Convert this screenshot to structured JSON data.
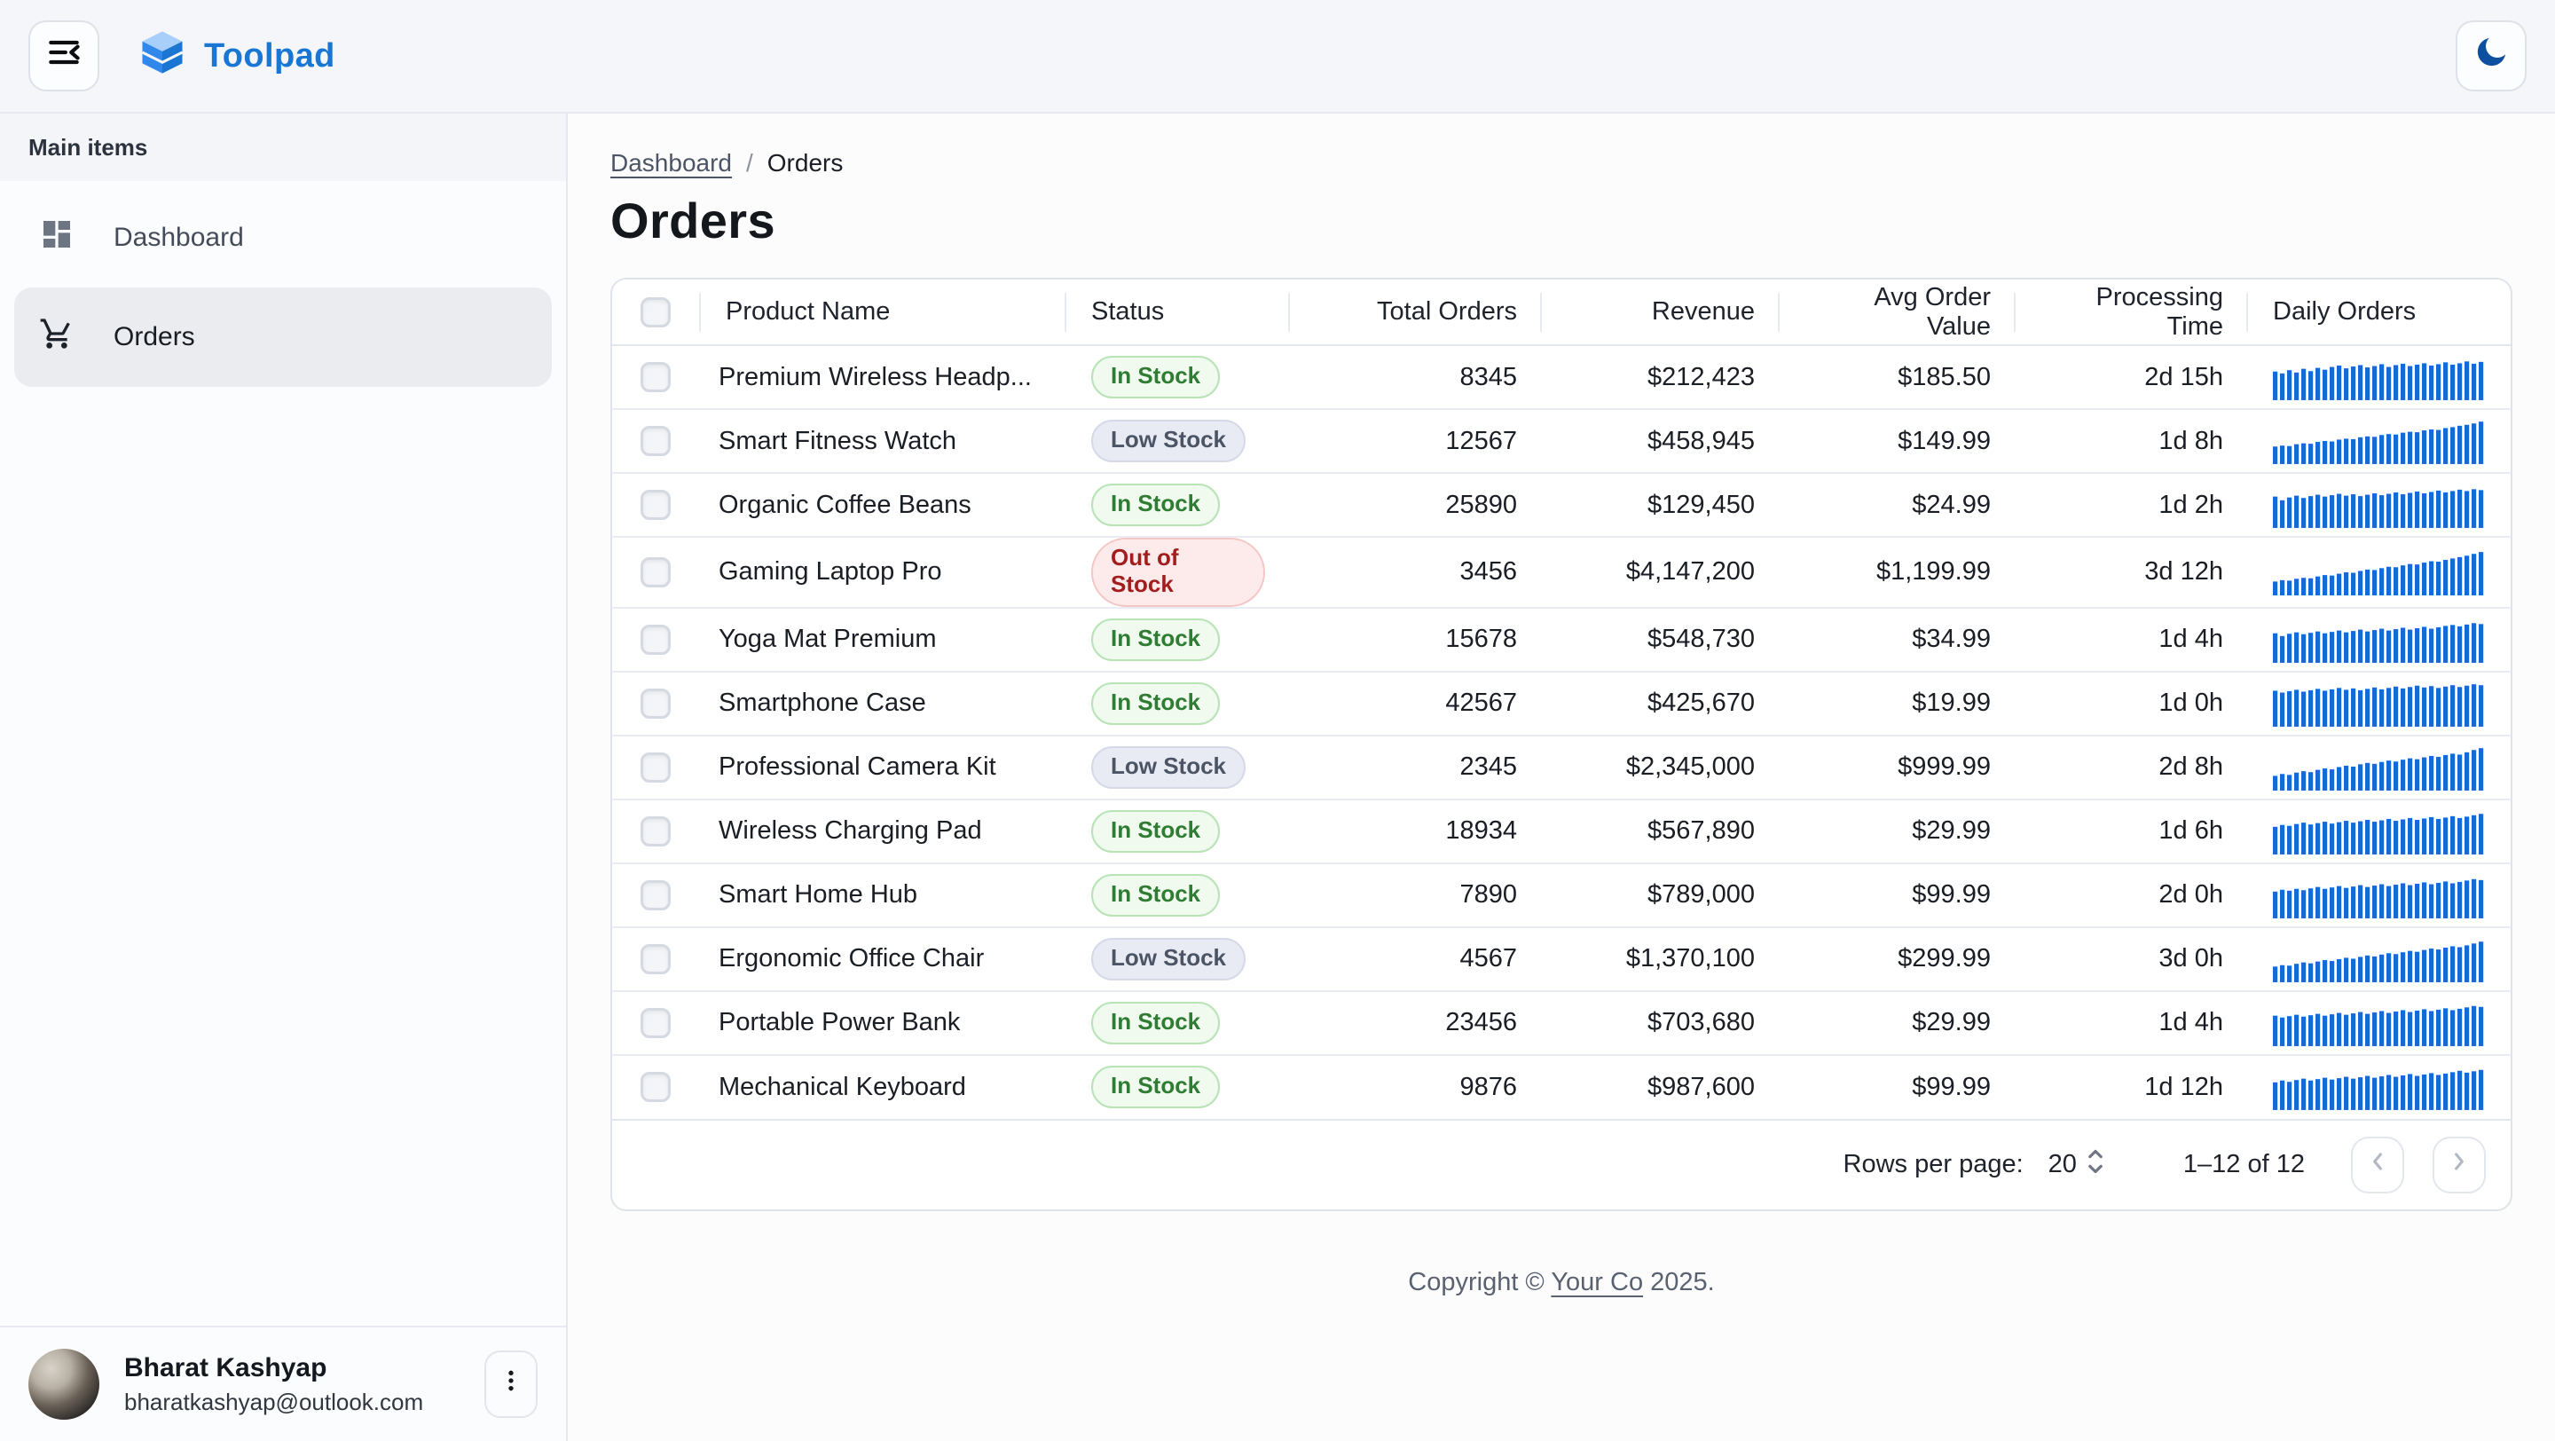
{
  "header": {
    "app_name": "Toolpad",
    "menu_icon": "collapse-sidebar-icon",
    "theme_icon": "moon-icon"
  },
  "sidebar": {
    "section_label": "Main items",
    "items": [
      {
        "label": "Dashboard",
        "icon": "dashboard-icon",
        "active": false
      },
      {
        "label": "Orders",
        "icon": "cart-icon",
        "active": true
      }
    ]
  },
  "user": {
    "name": "Bharat Kashyap",
    "email": "bharatkashyap@outlook.com"
  },
  "breadcrumb": {
    "items": [
      "Dashboard",
      "Orders"
    ],
    "separator": "/"
  },
  "page": {
    "title": "Orders"
  },
  "table": {
    "columns": [
      "",
      "Product Name",
      "Status",
      "Total Orders",
      "Revenue",
      "Avg Order Value",
      "Processing Time",
      "Daily Orders"
    ],
    "rows": [
      {
        "product": "Premium Wireless Headp...",
        "status": "In Stock",
        "status_type": "in",
        "total_orders": "8345",
        "revenue": "$212,423",
        "avg_order_value": "$185.50",
        "processing_time": "2d 15h",
        "daily_orders": [
          62,
          58,
          65,
          60,
          68,
          63,
          70,
          66,
          72,
          75,
          69,
          73,
          76,
          71,
          74,
          78,
          72,
          76,
          79,
          74,
          77,
          80,
          75,
          78,
          82,
          77,
          80,
          84,
          79,
          83
        ]
      },
      {
        "product": "Smart Fitness Watch",
        "status": "Low Stock",
        "status_type": "low",
        "total_orders": "12567",
        "revenue": "$458,945",
        "avg_order_value": "$149.99",
        "processing_time": "1d 8h",
        "daily_orders": [
          38,
          40,
          39,
          43,
          45,
          44,
          48,
          50,
          49,
          53,
          55,
          54,
          58,
          60,
          59,
          63,
          65,
          64,
          68,
          70,
          69,
          73,
          75,
          74,
          78,
          80,
          83,
          85,
          88,
          92
        ]
      },
      {
        "product": "Organic Coffee Beans",
        "status": "In Stock",
        "status_type": "in",
        "total_orders": "25890",
        "revenue": "$129,450",
        "avg_order_value": "$24.99",
        "processing_time": "1d 2h",
        "daily_orders": [
          68,
          60,
          66,
          70,
          65,
          69,
          72,
          68,
          71,
          74,
          70,
          73,
          69,
          72,
          75,
          71,
          74,
          77,
          73,
          76,
          79,
          75,
          78,
          81,
          77,
          80,
          83,
          80,
          84,
          82
        ]
      },
      {
        "product": "Gaming Laptop Pro",
        "status": "Out of Stock",
        "status_type": "out",
        "total_orders": "3456",
        "revenue": "$4,147,200",
        "avg_order_value": "$1,199.99",
        "processing_time": "3d 12h",
        "daily_orders": [
          30,
          33,
          32,
          36,
          38,
          37,
          41,
          44,
          43,
          47,
          50,
          49,
          53,
          56,
          55,
          59,
          62,
          61,
          65,
          68,
          67,
          71,
          74,
          73,
          77,
          80,
          83,
          86,
          90,
          94
        ]
      },
      {
        "product": "Yoga Mat Premium",
        "status": "In Stock",
        "status_type": "in",
        "total_orders": "15678",
        "revenue": "$548,730",
        "avg_order_value": "$34.99",
        "processing_time": "1d 4h",
        "daily_orders": [
          64,
          58,
          63,
          66,
          62,
          65,
          68,
          64,
          67,
          70,
          66,
          69,
          72,
          68,
          71,
          74,
          70,
          73,
          76,
          72,
          75,
          78,
          74,
          77,
          80,
          82,
          79,
          83,
          86,
          84
        ]
      },
      {
        "product": "Smartphone Case",
        "status": "In Stock",
        "status_type": "in",
        "total_orders": "42567",
        "revenue": "$425,670",
        "avg_order_value": "$19.99",
        "processing_time": "1d 0h",
        "daily_orders": [
          78,
          74,
          77,
          80,
          76,
          79,
          82,
          78,
          81,
          84,
          80,
          83,
          79,
          82,
          85,
          81,
          84,
          87,
          83,
          86,
          89,
          85,
          88,
          84,
          87,
          90,
          86,
          89,
          92,
          90
        ]
      },
      {
        "product": "Professional Camera Kit",
        "status": "Low Stock",
        "status_type": "low",
        "total_orders": "2345",
        "revenue": "$2,345,000",
        "avg_order_value": "$999.99",
        "processing_time": "2d 8h",
        "daily_orders": [
          32,
          36,
          34,
          39,
          42,
          40,
          45,
          48,
          46,
          51,
          54,
          52,
          57,
          60,
          58,
          62,
          65,
          63,
          67,
          70,
          68,
          72,
          75,
          73,
          77,
          80,
          78,
          83,
          88,
          92
        ]
      },
      {
        "product": "Wireless Charging Pad",
        "status": "In Stock",
        "status_type": "in",
        "total_orders": "18934",
        "revenue": "$567,890",
        "avg_order_value": "$29.99",
        "processing_time": "1d 6h",
        "daily_orders": [
          60,
          64,
          62,
          66,
          69,
          65,
          68,
          71,
          67,
          70,
          73,
          69,
          72,
          75,
          71,
          74,
          77,
          73,
          76,
          79,
          75,
          78,
          81,
          77,
          80,
          83,
          79,
          82,
          85,
          88
        ]
      },
      {
        "product": "Smart Home Hub",
        "status": "In Stock",
        "status_type": "in",
        "total_orders": "7890",
        "revenue": "$789,000",
        "avg_order_value": "$99.99",
        "processing_time": "2d 0h",
        "daily_orders": [
          58,
          62,
          60,
          64,
          61,
          65,
          68,
          64,
          67,
          70,
          66,
          69,
          72,
          68,
          71,
          74,
          70,
          73,
          76,
          72,
          75,
          78,
          74,
          77,
          80,
          76,
          79,
          82,
          85,
          83
        ]
      },
      {
        "product": "Ergonomic Office Chair",
        "status": "Low Stock",
        "status_type": "low",
        "total_orders": "4567",
        "revenue": "$1,370,100",
        "avg_order_value": "$299.99",
        "processing_time": "3d 0h",
        "daily_orders": [
          34,
          37,
          36,
          40,
          43,
          41,
          45,
          48,
          46,
          50,
          53,
          51,
          55,
          58,
          56,
          60,
          63,
          61,
          65,
          68,
          66,
          70,
          73,
          71,
          75,
          78,
          76,
          80,
          84,
          88
        ]
      },
      {
        "product": "Portable Power Bank",
        "status": "In Stock",
        "status_type": "in",
        "total_orders": "23456",
        "revenue": "$703,680",
        "avg_order_value": "$29.99",
        "processing_time": "1d 4h",
        "daily_orders": [
          66,
          62,
          65,
          68,
          64,
          67,
          70,
          66,
          69,
          72,
          68,
          71,
          74,
          70,
          73,
          76,
          72,
          75,
          78,
          74,
          77,
          80,
          76,
          79,
          82,
          78,
          81,
          84,
          87,
          85
        ]
      },
      {
        "product": "Mechanical Keyboard",
        "status": "In Stock",
        "status_type": "in",
        "total_orders": "9876",
        "revenue": "$987,600",
        "avg_order_value": "$99.99",
        "processing_time": "1d 12h",
        "daily_orders": [
          60,
          64,
          61,
          65,
          68,
          64,
          67,
          70,
          66,
          69,
          72,
          68,
          71,
          74,
          70,
          73,
          76,
          72,
          75,
          78,
          74,
          77,
          80,
          76,
          79,
          82,
          85,
          81,
          84,
          87
        ]
      }
    ]
  },
  "pagination": {
    "rows_per_page_label": "Rows per page:",
    "rows_per_page": "20",
    "range": "1–12 of 12"
  },
  "footer": {
    "prefix": "Copyright © ",
    "link_text": "Your Co",
    "suffix": " 2025."
  },
  "colors": {
    "accent_blue": "#1976d2",
    "sparkline": "#1669d8",
    "moon": "#0f4fa0",
    "status_in": "#2e7d32",
    "status_low": "#4c5565",
    "status_out": "#a21e1e"
  }
}
